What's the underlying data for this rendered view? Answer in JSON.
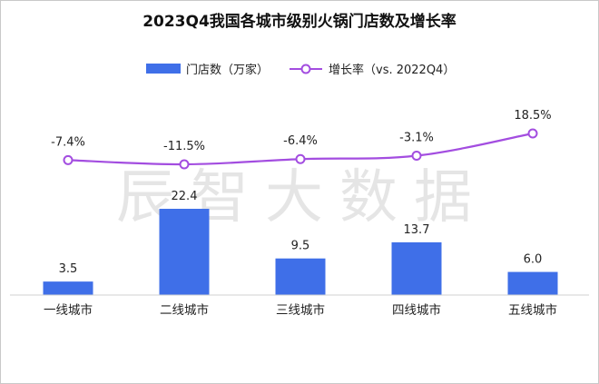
{
  "chart_data": {
    "type": "bar",
    "title": "2023Q4我国各城市级别火锅门店数及增长率",
    "categories": [
      "一线城市",
      "二线城市",
      "三线城市",
      "四线城市",
      "五线城市"
    ],
    "series": [
      {
        "name": "门店数（万家）",
        "type": "bar",
        "values": [
          3.5,
          22.4,
          9.5,
          13.7,
          6.0
        ],
        "labels": [
          "3.5",
          "22.4",
          "9.5",
          "13.7",
          "6.0"
        ],
        "color": "#3F6FE8"
      },
      {
        "name": "增长率（vs. 2022Q4）",
        "type": "line",
        "values": [
          -7.4,
          -11.5,
          -6.4,
          -3.1,
          18.5
        ],
        "labels": [
          "-7.4%",
          "-11.5%",
          "-6.4%",
          "-3.1%",
          "18.5%"
        ],
        "color": "#A34DE0",
        "unit": "%"
      }
    ],
    "bar_ylim": [
      0,
      22.4
    ],
    "line_ylim": [
      -11.5,
      18.5
    ],
    "legend_position": "top",
    "grid": false
  },
  "watermark": "辰智大数据"
}
